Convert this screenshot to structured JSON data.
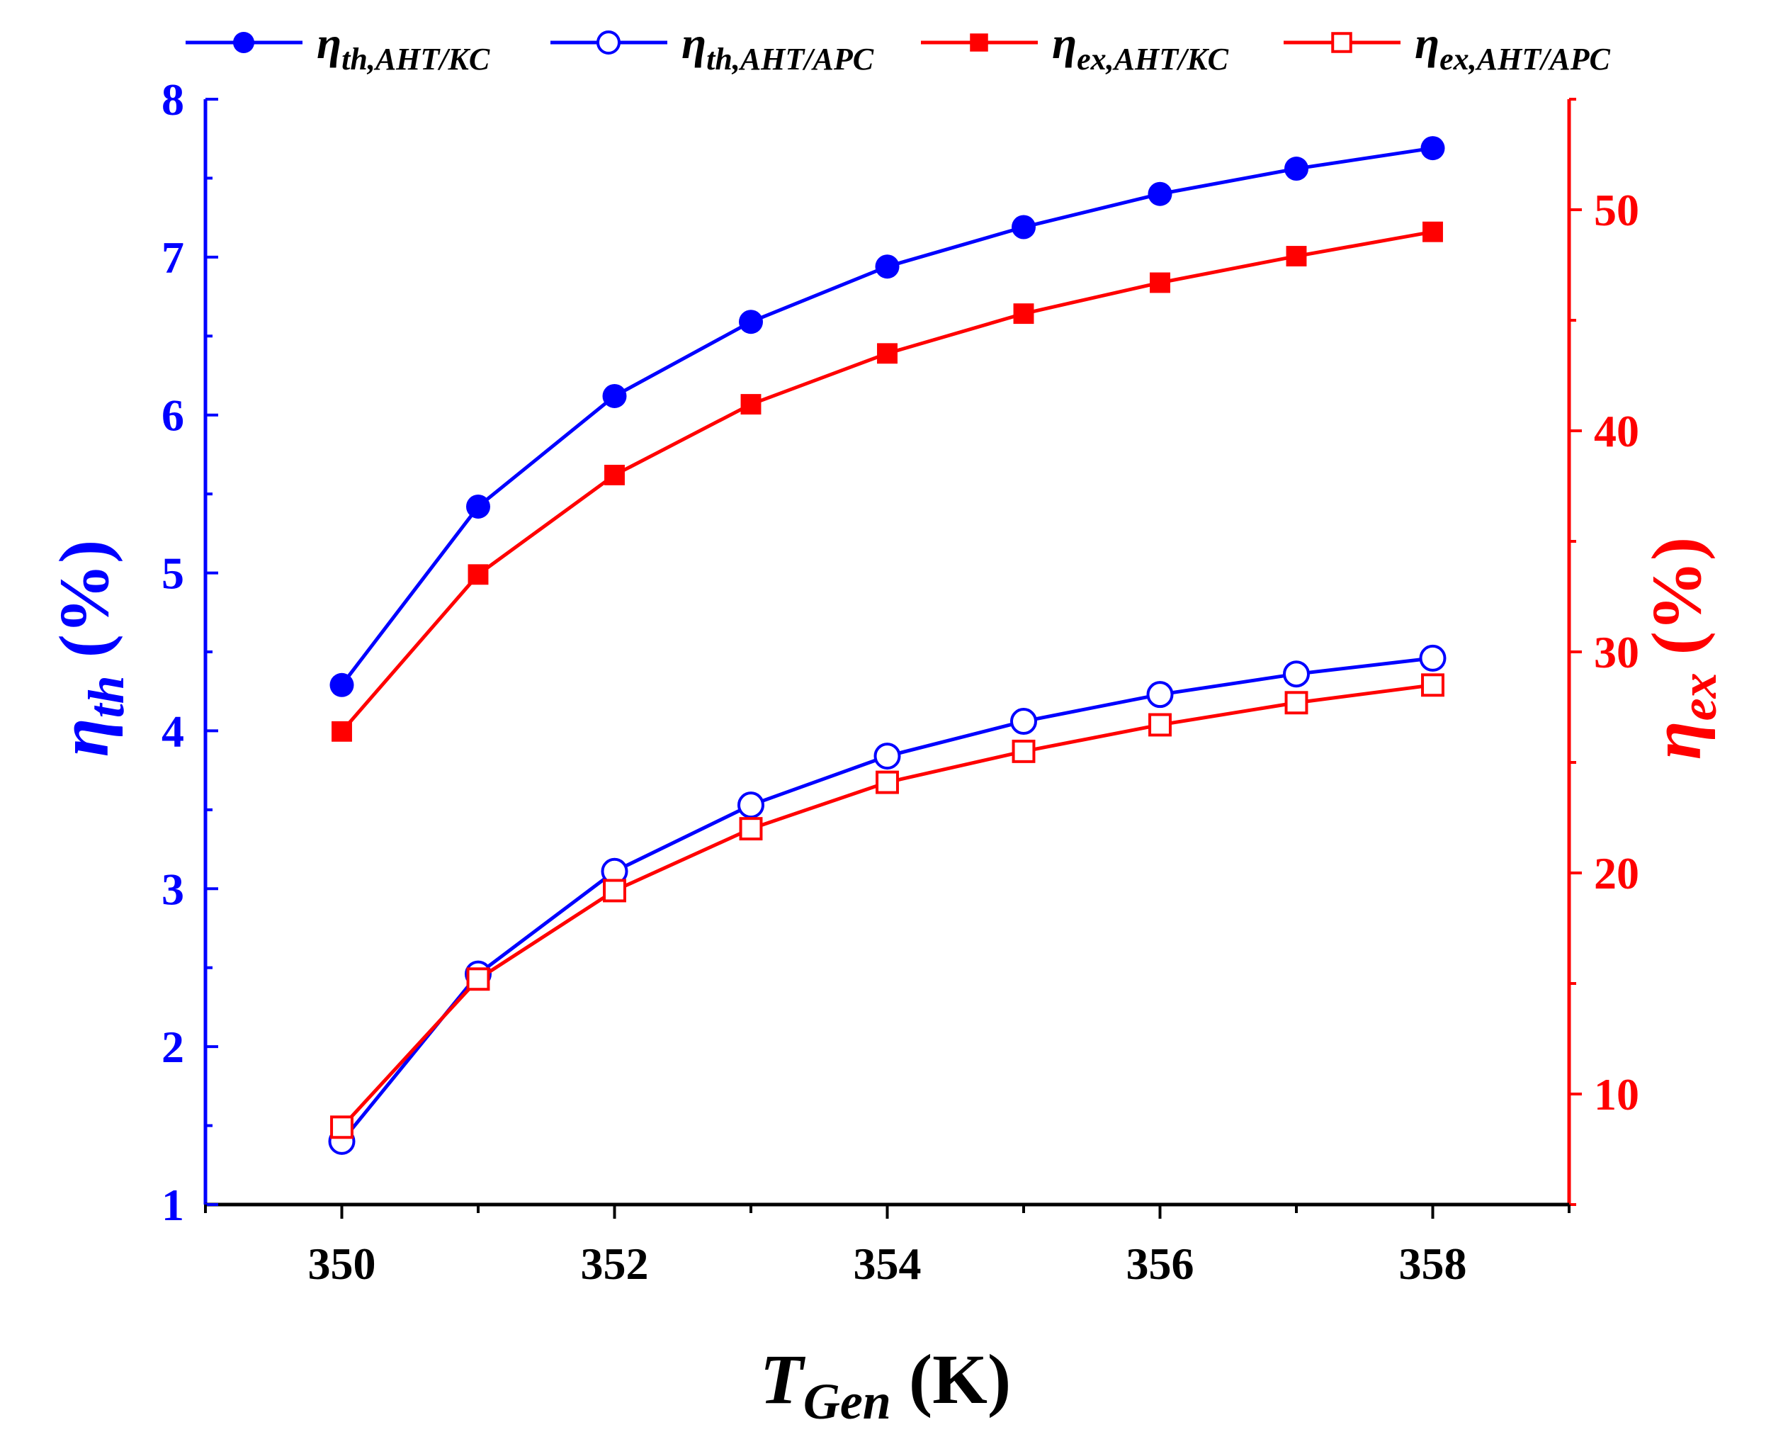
{
  "chart_data": {
    "type": "line",
    "x": [
      350,
      351,
      352,
      353,
      354,
      355,
      356,
      357,
      358
    ],
    "xlabel": {
      "main": "T",
      "sub": "Gen",
      "unit": " (K)"
    },
    "ylabel_left": {
      "main": "η",
      "sub": "th",
      "unit": " (%)"
    },
    "ylabel_right": {
      "main": "η",
      "sub": "ex",
      "unit": " (%)"
    },
    "xlim": [
      349,
      359
    ],
    "ylim_left": [
      1,
      8
    ],
    "ylim_right": [
      5,
      55
    ],
    "xticks": [
      "350",
      "352",
      "354",
      "356",
      "358"
    ],
    "yticks_left": [
      "1",
      "2",
      "3",
      "4",
      "5",
      "6",
      "7",
      "8"
    ],
    "yticks_right": [
      "10",
      "20",
      "30",
      "40",
      "50"
    ],
    "legend_position": "top",
    "colors": {
      "blue": "#0000ff",
      "red": "#ff0000",
      "axis": "#000000"
    },
    "series": [
      {
        "key": "th_kc",
        "main": "η",
        "sub": "th,AHT/KC",
        "axis": "left",
        "color": "#0000ff",
        "marker": "circle-filled",
        "values": [
          4.29,
          5.42,
          6.12,
          6.59,
          6.94,
          7.19,
          7.4,
          7.56,
          7.69
        ]
      },
      {
        "key": "th_apc",
        "main": "η",
        "sub": "th,AHT/APC",
        "axis": "left",
        "color": "#0000ff",
        "marker": "circle-open",
        "values": [
          1.4,
          2.46,
          3.11,
          3.53,
          3.84,
          4.06,
          4.23,
          4.36,
          4.46
        ]
      },
      {
        "key": "ex_kc",
        "main": "η",
        "sub": "ex,AHT/KC",
        "axis": "right",
        "color": "#ff0000",
        "marker": "square-filled",
        "values": [
          26.4,
          33.5,
          38.0,
          41.2,
          43.5,
          45.3,
          46.7,
          47.9,
          49.0
        ]
      },
      {
        "key": "ex_apc",
        "main": "η",
        "sub": "ex,AHT/APC",
        "axis": "right",
        "color": "#ff0000",
        "marker": "square-open",
        "values": [
          8.5,
          15.2,
          19.2,
          22.0,
          24.1,
          25.5,
          26.7,
          27.7,
          28.5
        ]
      }
    ]
  }
}
